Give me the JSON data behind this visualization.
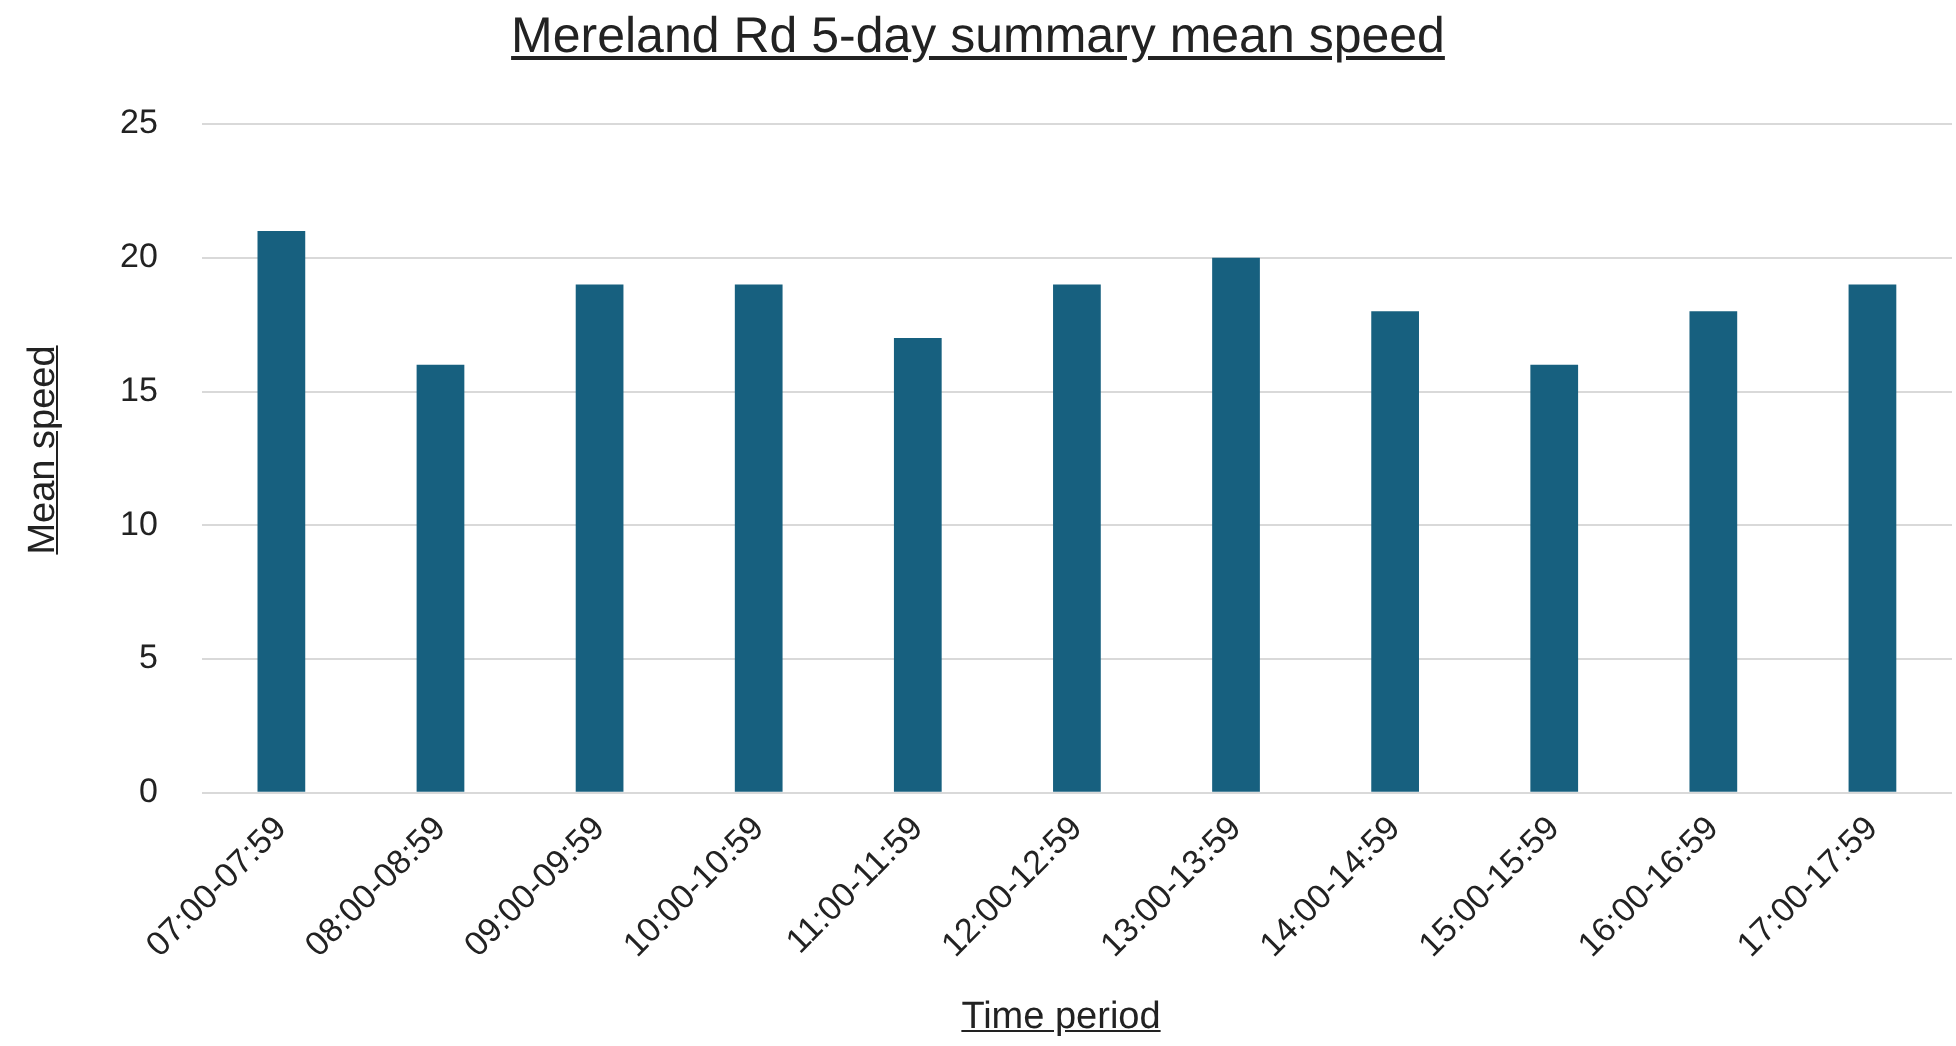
{
  "chart_data": {
    "type": "bar",
    "title": "Mereland Rd 5-day summary mean speed",
    "xlabel": "Time period",
    "ylabel": "Mean speed",
    "categories": [
      "07:00-07:59",
      "08:00-08:59",
      "09:00-09:59",
      "10:00-10:59",
      "11:00-11:59",
      "12:00-12:59",
      "13:00-13:59",
      "14:00-14:59",
      "15:00-15:59",
      "16:00-16:59",
      "17:00-17:59"
    ],
    "values": [
      21,
      16,
      19,
      19,
      17,
      19,
      20,
      18,
      16,
      18,
      19
    ],
    "color": "#17607f",
    "ylim": [
      0,
      25
    ],
    "yticks": [
      0,
      5,
      10,
      15,
      20,
      25
    ],
    "grid": "y",
    "legend": false
  }
}
